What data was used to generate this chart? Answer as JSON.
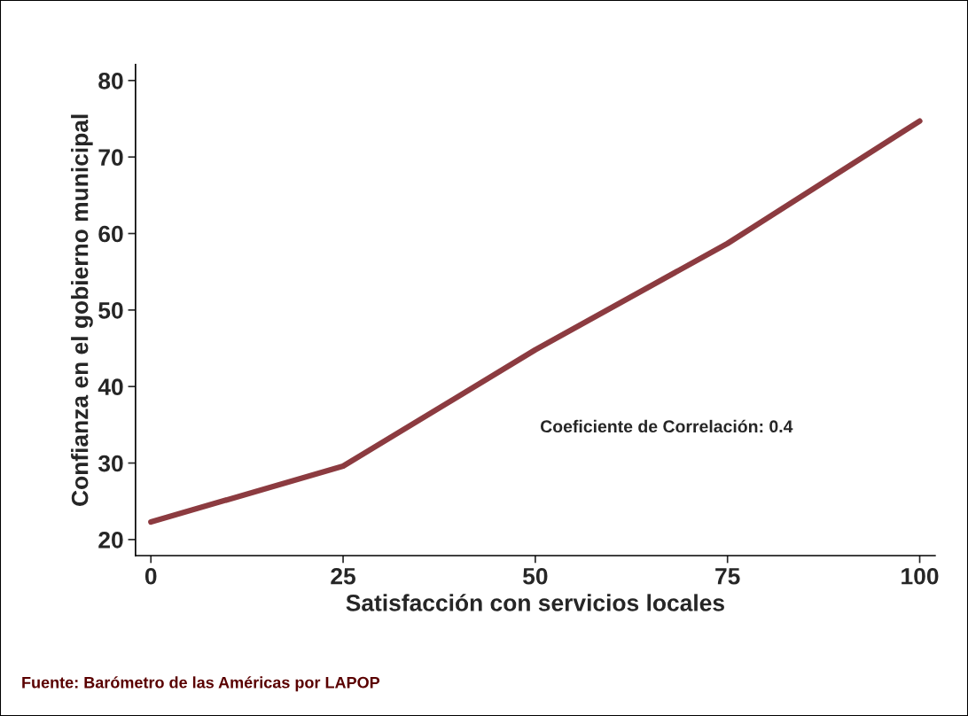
{
  "chart_data": {
    "type": "line",
    "xlabel": "Satisfacción con servicios locales",
    "ylabel": "Confianza en el gobierno municipal",
    "x": [
      0,
      25,
      50,
      75,
      100
    ],
    "series": [
      {
        "color": "#8c3b40",
        "values": [
          22.3,
          29.6,
          44.8,
          58.7,
          74.7
        ]
      }
    ],
    "xlim": [
      -2,
      102
    ],
    "ylim": [
      17.9,
      82.1
    ],
    "xticks": [
      0,
      25,
      50,
      75,
      100
    ],
    "yticks": [
      20,
      30,
      40,
      50,
      60,
      70,
      80
    ],
    "grid": false,
    "marker": "none",
    "line_style": "solid",
    "annotations": [
      "Coeficiente de Correlación: 0.4",
      "Fuente: Barómetro de las Américas por LAPOP"
    ]
  }
}
